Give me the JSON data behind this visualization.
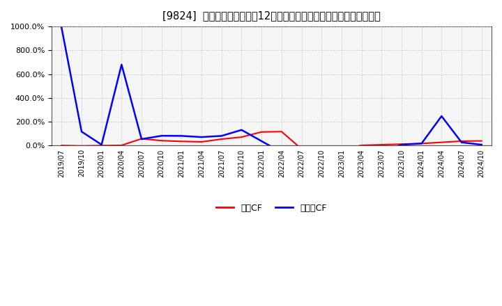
{
  "title": "[9824]  キャッシュフローの12か月移動合計の対前年同期増減率の推移",
  "title_fontsize": 10.5,
  "background_color": "#ffffff",
  "plot_bg_color": "#f5f5f5",
  "grid_color": "#bbbbbb",
  "ylim": [
    0,
    1000
  ],
  "yticks": [
    0,
    200,
    400,
    600,
    800,
    1000
  ],
  "legend_labels": [
    "営業CF",
    "フリーCF"
  ],
  "legend_colors": [
    "#ff0000",
    "#0000ff"
  ],
  "x_labels": [
    "2019/07",
    "2019/10",
    "2020/01",
    "2020/04",
    "2020/07",
    "2020/10",
    "2021/01",
    "2021/04",
    "2021/07",
    "2021/10",
    "2022/01",
    "2022/04",
    "2022/07",
    "2022/10",
    "2023/01",
    "2023/04",
    "2023/07",
    "2023/10",
    "2024/01",
    "2024/04",
    "2024/07",
    "2024/10"
  ],
  "operating_cf": [
    2,
    -2,
    1,
    3,
    58,
    42,
    36,
    32,
    55,
    72,
    115,
    118,
    -28,
    -32,
    -28,
    3,
    8,
    13,
    18,
    28,
    38,
    40
  ],
  "free_cf": [
    990,
    118,
    8,
    680,
    55,
    83,
    82,
    72,
    82,
    132,
    38,
    -55,
    -75,
    -125,
    -95,
    -125,
    -50,
    8,
    18,
    248,
    28,
    8
  ]
}
